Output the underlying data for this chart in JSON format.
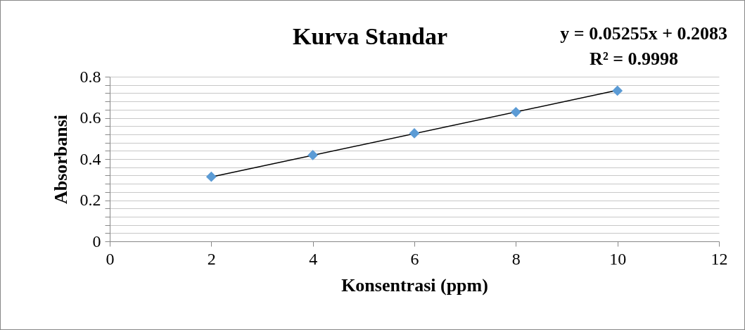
{
  "chart_data": {
    "type": "scatter",
    "title": "Kurva Standar",
    "xlabel": "Konsentrasi (ppm)",
    "ylabel": "Absorbansi",
    "annotations": [
      "y = 0.05255x + 0.2083",
      "R² = 0.9998"
    ],
    "x": [
      2,
      4,
      6,
      8,
      10
    ],
    "series": [
      {
        "color": "#5b9bd5",
        "values": [
          0.314,
          0.419,
          0.525,
          0.628,
          0.732
        ]
      },
      {
        "type": "line",
        "color": "#000000",
        "marker": "none",
        "x": [
          2,
          10
        ],
        "values": [
          0.313,
          0.734
        ]
      }
    ],
    "xlim": [
      0,
      12
    ],
    "xticks": [
      0,
      2,
      4,
      6,
      8,
      10,
      12
    ],
    "ylim": [
      0,
      0.8
    ],
    "yticks": [
      0,
      {
        "value": 0.04,
        "label": null
      },
      {
        "value": 0.08,
        "label": null
      },
      {
        "value": 0.12,
        "label": null
      },
      {
        "value": 0.16,
        "label": null
      },
      0.2,
      {
        "value": 0.24,
        "label": null
      },
      {
        "value": 0.28,
        "label": null
      },
      {
        "value": 0.32,
        "label": null
      },
      {
        "value": 0.36,
        "label": null
      },
      0.4,
      {
        "value": 0.44,
        "label": null
      },
      {
        "value": 0.48,
        "label": null
      },
      {
        "value": 0.52,
        "label": null
      },
      {
        "value": 0.56,
        "label": null
      },
      0.6,
      {
        "value": 0.64,
        "label": null
      },
      {
        "value": 0.68,
        "label": null
      },
      {
        "value": 0.72,
        "label": null
      },
      {
        "value": 0.76,
        "label": null
      },
      0.8
    ],
    "grid": "y",
    "marker": "diamond",
    "line_style": "solid"
  }
}
